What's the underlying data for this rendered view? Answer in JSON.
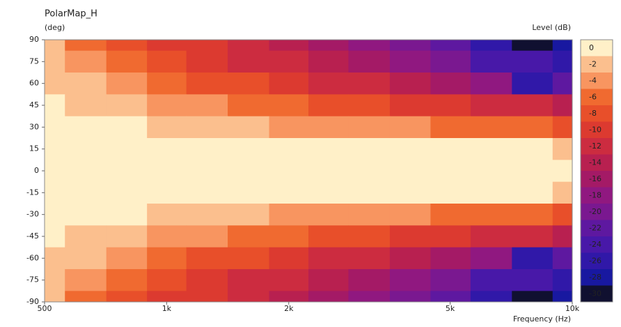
{
  "chart_data": {
    "type": "heatmap",
    "title": "PolarMap_H",
    "y_label": "(deg)",
    "colorbar_label": "Level  (dB)",
    "x_label": "Frequency  (Hz)",
    "log_x": true,
    "xlim": [
      500,
      10000
    ],
    "xticks": [
      500,
      {
        "value": 1000,
        "label": "1k"
      },
      {
        "value": 2000,
        "label": "2k"
      },
      {
        "value": 5000,
        "label": "5k"
      },
      {
        "value": 10000,
        "label": "10k"
      }
    ],
    "ylim": [
      -90,
      90
    ],
    "yticks": [
      90,
      75,
      60,
      45,
      30,
      15,
      0,
      -15,
      -30,
      -45,
      -60,
      -75,
      -90
    ],
    "x": [
      500,
      630,
      800,
      1000,
      1250,
      1600,
      2000,
      2500,
      3150,
      4000,
      5000,
      6300,
      8000,
      10000
    ],
    "y": [
      90,
      75,
      60,
      45,
      30,
      15,
      0,
      -15,
      -30,
      -45,
      -60,
      -75,
      -90
    ],
    "z": [
      [
        -3.5,
        -6,
        -8,
        -10,
        -11,
        -13,
        -15,
        -17,
        -19,
        -21,
        -23,
        -26,
        -30,
        -29
      ],
      [
        -3,
        -5,
        -7,
        -9,
        -10,
        -12,
        -13,
        -15,
        -17,
        -19,
        -21,
        -24,
        -25,
        -26
      ],
      [
        -2,
        -3,
        -5,
        -6,
        -8,
        -9,
        -10,
        -12,
        -13,
        -15,
        -17,
        -19,
        -27,
        -22
      ],
      [
        -1,
        -2,
        -3,
        -4,
        -5,
        -6,
        -7,
        -8,
        -9,
        -10,
        -11,
        -12,
        -13,
        -15
      ],
      [
        0,
        -0.5,
        -1,
        -2,
        -2.5,
        -3,
        -4,
        -4.5,
        -5,
        -5.5,
        -6,
        -6.5,
        -7,
        -9
      ],
      [
        0,
        0,
        0,
        0,
        0,
        0,
        -0.5,
        -1,
        -1,
        -1,
        -1,
        -1.5,
        -1.5,
        -2.5
      ],
      [
        0,
        0,
        0,
        0,
        0,
        0,
        0,
        0,
        0,
        0,
        0,
        0,
        0,
        0
      ],
      [
        0,
        0,
        0,
        0,
        0,
        0,
        -0.5,
        -1,
        -1,
        -1,
        -1,
        -1.5,
        -1.5,
        -2.5
      ],
      [
        0,
        -0.5,
        -1,
        -2,
        -2.5,
        -3,
        -4,
        -4.5,
        -5,
        -5.5,
        -6,
        -6.5,
        -7,
        -9
      ],
      [
        -1,
        -2,
        -3,
        -4,
        -5,
        -6,
        -7,
        -8,
        -9,
        -10,
        -11,
        -12,
        -13,
        -15
      ],
      [
        -2,
        -3,
        -5,
        -6,
        -8,
        -9,
        -10,
        -12,
        -13,
        -15,
        -17,
        -19,
        -27,
        -22
      ],
      [
        -3,
        -5,
        -7,
        -9,
        -10,
        -12,
        -13,
        -15,
        -17,
        -19,
        -21,
        -24,
        -25,
        -26
      ],
      [
        -3.5,
        -6,
        -8,
        -10,
        -11,
        -13,
        -15,
        -17,
        -19,
        -21,
        -23,
        -26,
        -30,
        -29
      ]
    ],
    "colorbar_ticks": [
      0,
      -2,
      -4,
      -6,
      -8,
      -10,
      -12,
      -14,
      -16,
      -18,
      -20,
      -22,
      -24,
      -26,
      -28,
      -30
    ],
    "colors": [
      "#fff0c8",
      "#fbbf8e",
      "#f89560",
      "#f06a30",
      "#e84f2a",
      "#dc3a30",
      "#cc2c40",
      "#b82050",
      "#a41a66",
      "#901880",
      "#7a1890",
      "#5e18a0",
      "#4818a8",
      "#3018a8",
      "#1818a0",
      "#101030"
    ]
  }
}
